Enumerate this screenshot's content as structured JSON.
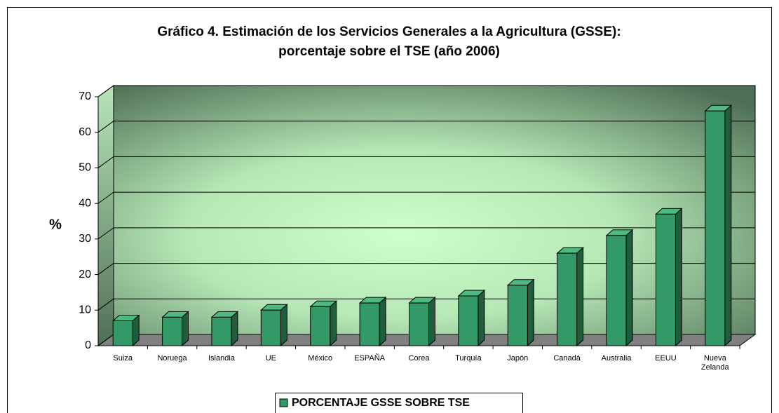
{
  "chart_data": {
    "type": "bar3d",
    "title": [
      "Gráfico 4. Estimación de los Servicios Generales a la Agricultura (GSSE):",
      "porcentaje sobre el TSE (año 2006)"
    ],
    "y_label": "%",
    "categories": [
      "Suiza",
      "Noruega",
      "Islandia",
      "UE",
      "México",
      "ESPAÑA",
      "Corea",
      "Turquía",
      "Japón",
      "Canadá",
      "Australia",
      "EEUU",
      "Nueva Zelanda"
    ],
    "series": [
      {
        "name": "PORCENTAJE GSSE SOBRE TSE",
        "color": "#339966",
        "values": [
          7,
          8,
          8,
          10,
          11,
          12,
          12,
          14,
          17,
          26,
          31,
          37,
          66
        ]
      }
    ],
    "ylim": [
      0,
      70
    ],
    "yticks": [
      0,
      10,
      20,
      30,
      40,
      50,
      60,
      70
    ],
    "grid": true,
    "legend": "bottom"
  }
}
